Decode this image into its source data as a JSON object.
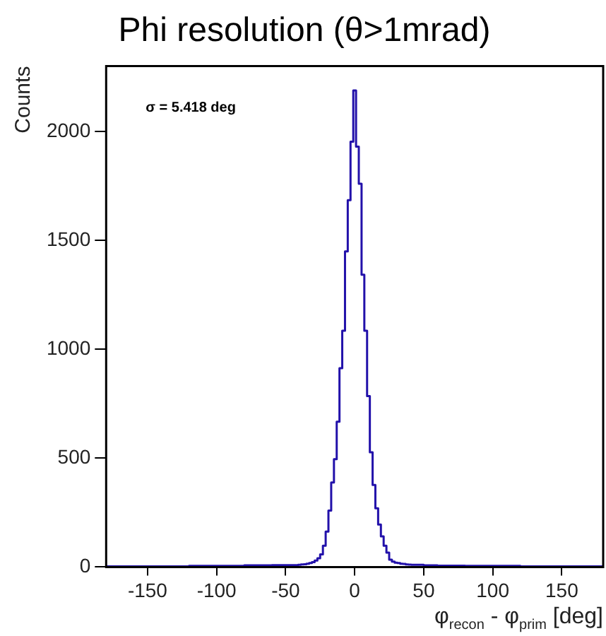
{
  "chart_data": {
    "type": "histogram",
    "title": "Phi resolution (θ>1mrad)",
    "xlabel": "φ$_{recon}$ - φ$_{prim}$ [deg]",
    "ylabel": "Counts",
    "annotations": [
      "σ = 5.418 deg"
    ],
    "bins": [
      -180,
      -120,
      -80,
      -60,
      -50,
      -41,
      -39,
      -37,
      -35,
      -33,
      -31,
      -29,
      -27,
      -25,
      -23,
      -21,
      -19,
      -17,
      -15,
      -13,
      -11,
      -9,
      -7,
      -5,
      -3,
      -1,
      1,
      3,
      5,
      7,
      9,
      11,
      13,
      15,
      17,
      19,
      21,
      23,
      25,
      27,
      29,
      31,
      33,
      35,
      37,
      39,
      41,
      50,
      60,
      80,
      120,
      180
    ],
    "values": [
      3,
      5,
      8,
      9,
      9,
      10,
      12,
      13,
      15,
      18,
      22,
      30,
      40,
      58,
      98,
      163,
      259,
      388,
      495,
      667,
      913,
      1085,
      1449,
      1685,
      1953,
      2188,
      1930,
      1760,
      1342,
      1085,
      785,
      527,
      377,
      270,
      195,
      141,
      98,
      66,
      34,
      25,
      20,
      18,
      15,
      14,
      12,
      11,
      10,
      8,
      6,
      5,
      3
    ],
    "color": "#2211aa",
    "xlim": [
      -180,
      180
    ],
    "xticks": [
      -150,
      -100,
      -50,
      0,
      50,
      100,
      150
    ],
    "ylim": [
      0,
      2300
    ],
    "yticks": [
      0,
      500,
      1000,
      1500,
      2000
    ],
    "grid": false,
    "legend": false
  }
}
